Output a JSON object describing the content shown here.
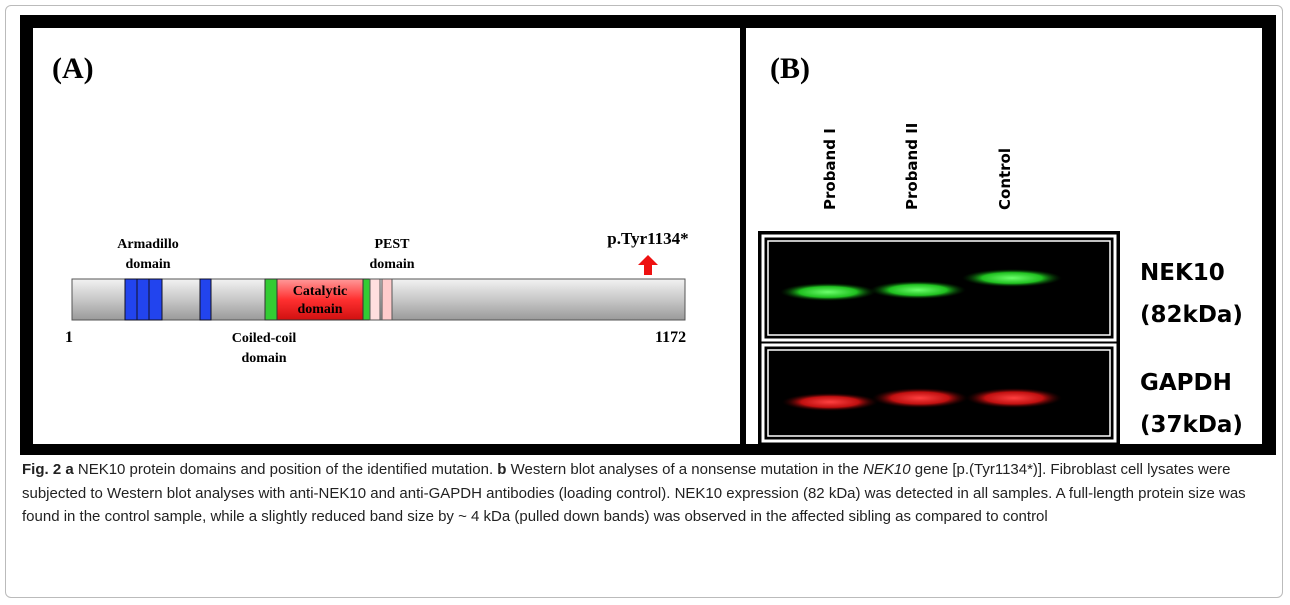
{
  "panel_a": {
    "label": "(A)",
    "armadillo": [
      "Armadillo",
      "domain"
    ],
    "pest": [
      "PEST",
      "domain"
    ],
    "catalytic": [
      "Catalytic",
      "domain"
    ],
    "coiled_coil": [
      "Coiled-coil",
      "domain"
    ],
    "mutation": "p.Tyr1134*",
    "start": "1",
    "end": "1172"
  },
  "panel_b": {
    "label": "(B)",
    "lanes": [
      "Proband I",
      "Proband II",
      "Control"
    ],
    "nek10": [
      "NEK10",
      "(82kDa)"
    ],
    "gapdh": [
      "GAPDH",
      "(37kDa)"
    ]
  },
  "caption": {
    "fig": "Fig. 2",
    "a_label": "a",
    "a_text": "NEK10 protein domains and position of the identified mutation.",
    "b_label": "b",
    "b_text_1": "Western blot analyses of a nonsense mutation in the",
    "gene": "NEK10",
    "b_text_2": "gene [p.(Tyr1134*)]. Fibroblast cell lysates were subjected to Western blot analyses with anti-NEK10 and anti-GAPDH antibodies (loading control). NEK10 expression (82 kDa) was detected in all samples. A full-length protein size was found in the control sample, while a slightly reduced band size by ~ 4 kDa (pulled down bands) was observed in the affected sibling as compared to control"
  }
}
